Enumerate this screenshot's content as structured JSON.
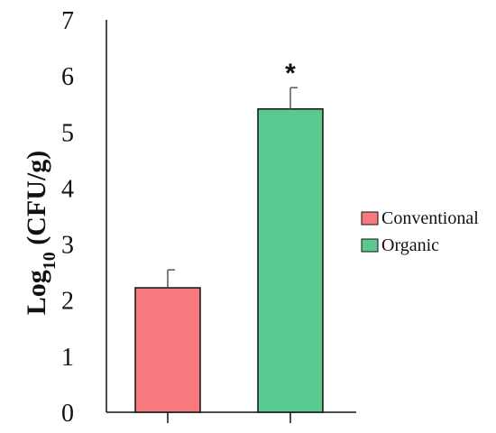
{
  "chart_data": {
    "type": "bar",
    "categories": [
      "Conventional",
      "Organic"
    ],
    "values": [
      2.22,
      5.41
    ],
    "errors": [
      0.32,
      0.38
    ],
    "colors": [
      "#f97a7e",
      "#5ac98f"
    ],
    "significance": [
      "",
      "*"
    ],
    "title": "",
    "xlabel": "",
    "ylabel_base": "Log",
    "ylabel_sub": "10",
    "ylabel_rest": " (CFU/g)",
    "ylim": [
      0,
      7
    ],
    "yticks": [
      0,
      1,
      2,
      3,
      4,
      5,
      6,
      7
    ],
    "legend_position": "right",
    "grid": false
  }
}
